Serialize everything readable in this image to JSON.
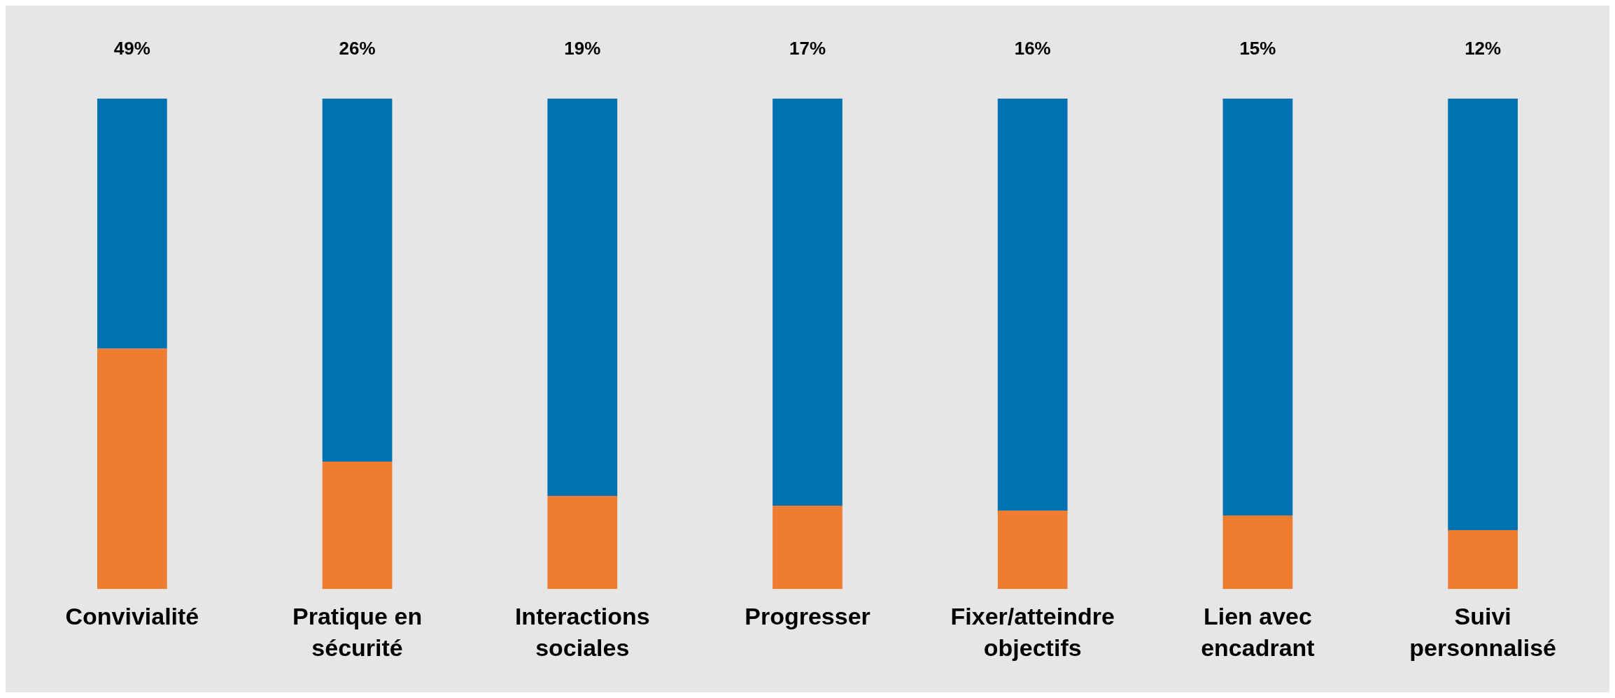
{
  "chart_data": {
    "type": "bar",
    "stacked": true,
    "categories": [
      "Convivialité",
      "Pratique en sécurité",
      "Interactions sociales",
      "Progresser",
      "Fixer/atteindre objectifs",
      "Lien avec encadrant",
      "Suivi personnalisé"
    ],
    "series": [
      {
        "color": "#ef7d31",
        "values": [
          49,
          26,
          19,
          17,
          16,
          15,
          12
        ],
        "value_labels": [
          "49%",
          "26%",
          "19%",
          "17%",
          "16%",
          "15%",
          "12%"
        ]
      },
      {
        "color": "#0072b1",
        "values": [
          51,
          74,
          81,
          83,
          84,
          85,
          88
        ]
      }
    ],
    "ylim": [
      0,
      100
    ],
    "legend": false,
    "grid": false
  }
}
